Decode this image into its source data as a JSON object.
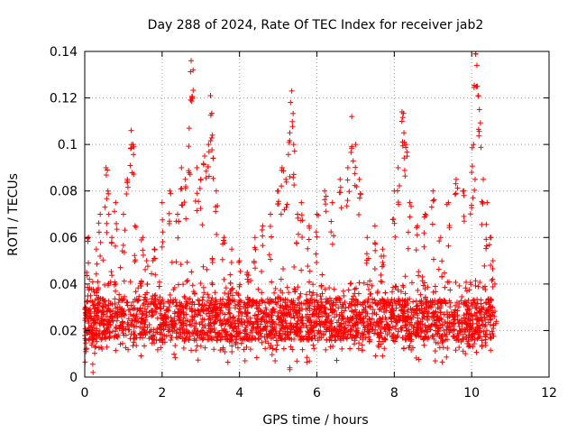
{
  "chart_data": {
    "type": "scatter",
    "title": "Day 288 of 2024, Rate Of TEC Index for receiver jab2",
    "xlabel": "GPS time / hours",
    "ylabel": "ROTI / TECUs",
    "xlim": [
      0,
      12
    ],
    "ylim": [
      0,
      0.14
    ],
    "xticks": [
      "0",
      "2",
      "4",
      "6",
      "8",
      "10",
      "12"
    ],
    "yticks": [
      "0",
      "0.02",
      "0.04",
      "0.06",
      "0.08",
      "0.1",
      "0.12",
      "0.14"
    ],
    "grid": true,
    "marker": "+",
    "color": "#ff0000",
    "series": [
      {
        "name": "ROTI",
        "x_range": [
          0,
          10.6
        ],
        "baseline": 0.022,
        "points": [
          [
            0.02,
            0.03
          ],
          [
            0.05,
            0.045
          ],
          [
            0.1,
            0.06
          ],
          [
            0.15,
            0.035
          ],
          [
            0.2,
            0.02
          ],
          [
            0.3,
            0.055
          ],
          [
            0.4,
            0.07
          ],
          [
            0.55,
            0.09
          ],
          [
            0.6,
            0.08
          ],
          [
            0.7,
            0.06
          ],
          [
            0.8,
            0.075
          ],
          [
            1.0,
            0.07
          ],
          [
            1.1,
            0.085
          ],
          [
            1.2,
            0.106
          ],
          [
            1.25,
            0.1
          ],
          [
            1.3,
            0.065
          ],
          [
            1.5,
            0.06
          ],
          [
            1.6,
            0.05
          ],
          [
            1.8,
            0.055
          ],
          [
            2.0,
            0.075
          ],
          [
            2.2,
            0.08
          ],
          [
            2.4,
            0.07
          ],
          [
            2.5,
            0.09
          ],
          [
            2.6,
            0.085
          ],
          [
            2.7,
            0.107
          ],
          [
            2.75,
            0.136
          ],
          [
            2.8,
            0.132
          ],
          [
            2.9,
            0.09
          ],
          [
            3.0,
            0.085
          ],
          [
            3.1,
            0.095
          ],
          [
            3.2,
            0.1
          ],
          [
            3.25,
            0.121
          ],
          [
            3.3,
            0.104
          ],
          [
            3.4,
            0.08
          ],
          [
            3.6,
            0.06
          ],
          [
            3.8,
            0.055
          ],
          [
            4.0,
            0.05
          ],
          [
            4.2,
            0.045
          ],
          [
            4.4,
            0.06
          ],
          [
            4.6,
            0.065
          ],
          [
            4.8,
            0.07
          ],
          [
            5.0,
            0.08
          ],
          [
            5.1,
            0.09
          ],
          [
            5.2,
            0.085
          ],
          [
            5.3,
            0.105
          ],
          [
            5.35,
            0.123
          ],
          [
            5.4,
            0.1
          ],
          [
            5.5,
            0.07
          ],
          [
            5.6,
            0.075
          ],
          [
            5.8,
            0.065
          ],
          [
            6.0,
            0.07
          ],
          [
            6.2,
            0.08
          ],
          [
            6.4,
            0.075
          ],
          [
            6.6,
            0.085
          ],
          [
            6.8,
            0.09
          ],
          [
            6.9,
            0.112
          ],
          [
            7.0,
            0.1
          ],
          [
            7.1,
            0.085
          ],
          [
            7.3,
            0.06
          ],
          [
            7.5,
            0.065
          ],
          [
            7.7,
            0.055
          ],
          [
            8.0,
            0.08
          ],
          [
            8.1,
            0.09
          ],
          [
            8.2,
            0.114
          ],
          [
            8.25,
            0.105
          ],
          [
            8.3,
            0.1
          ],
          [
            8.4,
            0.075
          ],
          [
            8.6,
            0.065
          ],
          [
            8.8,
            0.07
          ],
          [
            9.0,
            0.08
          ],
          [
            9.2,
            0.06
          ],
          [
            9.4,
            0.075
          ],
          [
            9.6,
            0.085
          ],
          [
            9.8,
            0.08
          ],
          [
            10.0,
            0.088
          ],
          [
            10.05,
            0.1
          ],
          [
            10.1,
            0.139
          ],
          [
            10.15,
            0.125
          ],
          [
            10.2,
            0.115
          ],
          [
            10.3,
            0.085
          ],
          [
            10.4,
            0.075
          ],
          [
            10.5,
            0.06
          ],
          [
            10.55,
            0.05
          ],
          [
            10.6,
            0.04
          ],
          [
            5.3,
            0.004
          ]
        ]
      }
    ]
  }
}
